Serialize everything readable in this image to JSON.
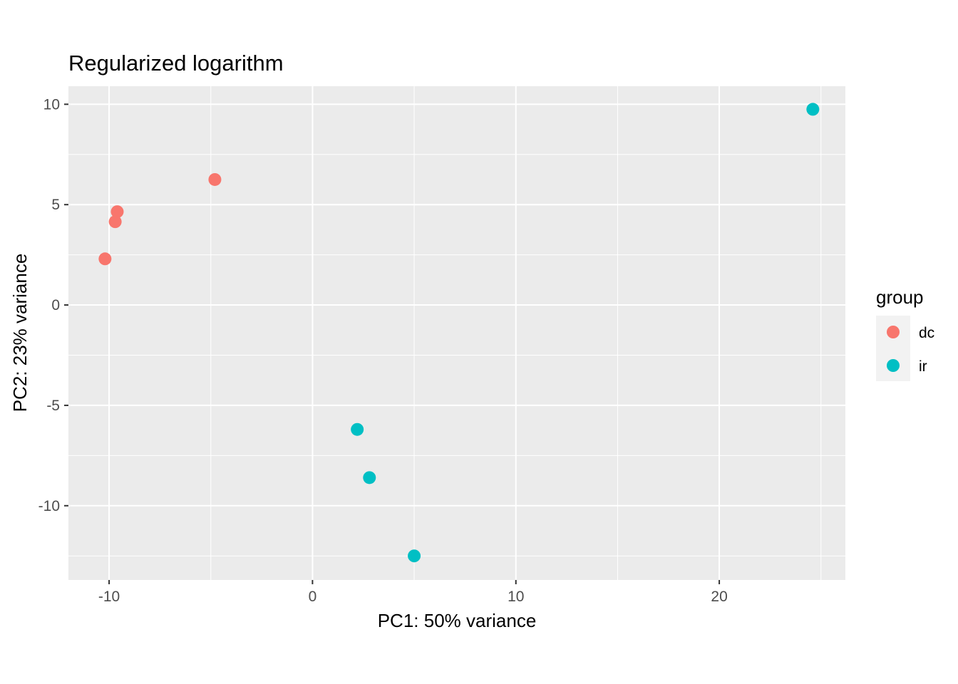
{
  "chart_data": {
    "type": "scatter",
    "title": "Regularized logarithm",
    "xlabel": "PC1: 50% variance",
    "ylabel": "PC2: 23% variance",
    "xlim": [
      -12.0,
      26.2
    ],
    "ylim": [
      -13.7,
      10.9
    ],
    "x_ticks": [
      -10,
      0,
      10,
      20
    ],
    "x_tick_labels": [
      "-10",
      "0",
      "10",
      "20"
    ],
    "y_ticks": [
      10,
      5,
      0,
      -5,
      -10
    ],
    "y_tick_labels": [
      "10",
      "5",
      "0",
      "-5",
      "-10"
    ],
    "grid": true,
    "legend": {
      "title": "group",
      "position": "right",
      "entries": [
        {
          "label": "dc",
          "color": "#F8766D"
        },
        {
          "label": "ir",
          "color": "#00BFC4"
        }
      ]
    },
    "series": [
      {
        "name": "dc",
        "color": "#F8766D",
        "points": [
          {
            "x": -4.8,
            "y": 6.25
          },
          {
            "x": -9.6,
            "y": 4.65
          },
          {
            "x": -9.7,
            "y": 4.15
          },
          {
            "x": -10.2,
            "y": 2.3
          }
        ]
      },
      {
        "name": "ir",
        "color": "#00BFC4",
        "points": [
          {
            "x": 24.6,
            "y": 9.75
          },
          {
            "x": 2.2,
            "y": -6.2
          },
          {
            "x": 2.8,
            "y": -8.6
          },
          {
            "x": 5.0,
            "y": -12.5
          }
        ]
      }
    ]
  }
}
